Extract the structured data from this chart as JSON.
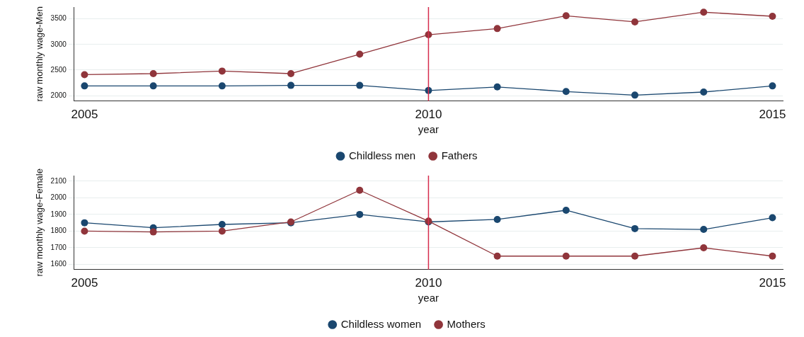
{
  "chart_data": [
    {
      "type": "line",
      "xlabel": "year",
      "ylabel": "raw monthly wage-Men",
      "x": [
        2005,
        2006,
        2007,
        2008,
        2009,
        2010,
        2011,
        2012,
        2013,
        2014,
        2015
      ],
      "series": [
        {
          "name": "Childless men",
          "color": "#1a476f",
          "values": [
            2190,
            2190,
            2190,
            2200,
            2200,
            2100,
            2170,
            2080,
            2010,
            2070,
            2190
          ]
        },
        {
          "name": "Fathers",
          "color": "#90353b",
          "values": [
            2410,
            2430,
            2480,
            2430,
            2810,
            3190,
            3310,
            3560,
            3440,
            3630,
            3550
          ]
        }
      ],
      "xlim": [
        2004.85,
        2015.15
      ],
      "xticks": [
        2005,
        2010,
        2015
      ],
      "ylim": [
        1896,
        3730
      ],
      "yticks": [
        2000,
        2500,
        3000,
        3500
      ],
      "ref_lines": [
        {
          "axis": "x",
          "value": 2010,
          "color": "#d62d4d"
        }
      ],
      "grid": "y",
      "legend": "bottom",
      "marker": "circle",
      "line_style": "solid"
    },
    {
      "type": "line",
      "xlabel": "year",
      "ylabel": "raw monthly wage-Female",
      "x": [
        2005,
        2006,
        2007,
        2008,
        2009,
        2010,
        2011,
        2012,
        2013,
        2014,
        2015
      ],
      "series": [
        {
          "name": "Childless women",
          "color": "#1a476f",
          "values": [
            1850,
            1820,
            1840,
            1850,
            1900,
            1855,
            1870,
            1925,
            1815,
            1810,
            1880
          ]
        },
        {
          "name": "Mothers",
          "color": "#90353b",
          "values": [
            1800,
            1795,
            1800,
            1855,
            2045,
            1860,
            1650,
            1650,
            1650,
            1700,
            1650
          ]
        }
      ],
      "xlim": [
        2004.85,
        2015.15
      ],
      "xticks": [
        2005,
        2010,
        2015
      ],
      "ylim": [
        1570,
        2133
      ],
      "yticks": [
        1600,
        1700,
        1800,
        1900,
        2000,
        2100
      ],
      "ref_lines": [
        {
          "axis": "x",
          "value": 2010,
          "color": "#d62d4d"
        }
      ],
      "grid": "y",
      "legend": "bottom",
      "marker": "circle",
      "line_style": "solid"
    }
  ]
}
